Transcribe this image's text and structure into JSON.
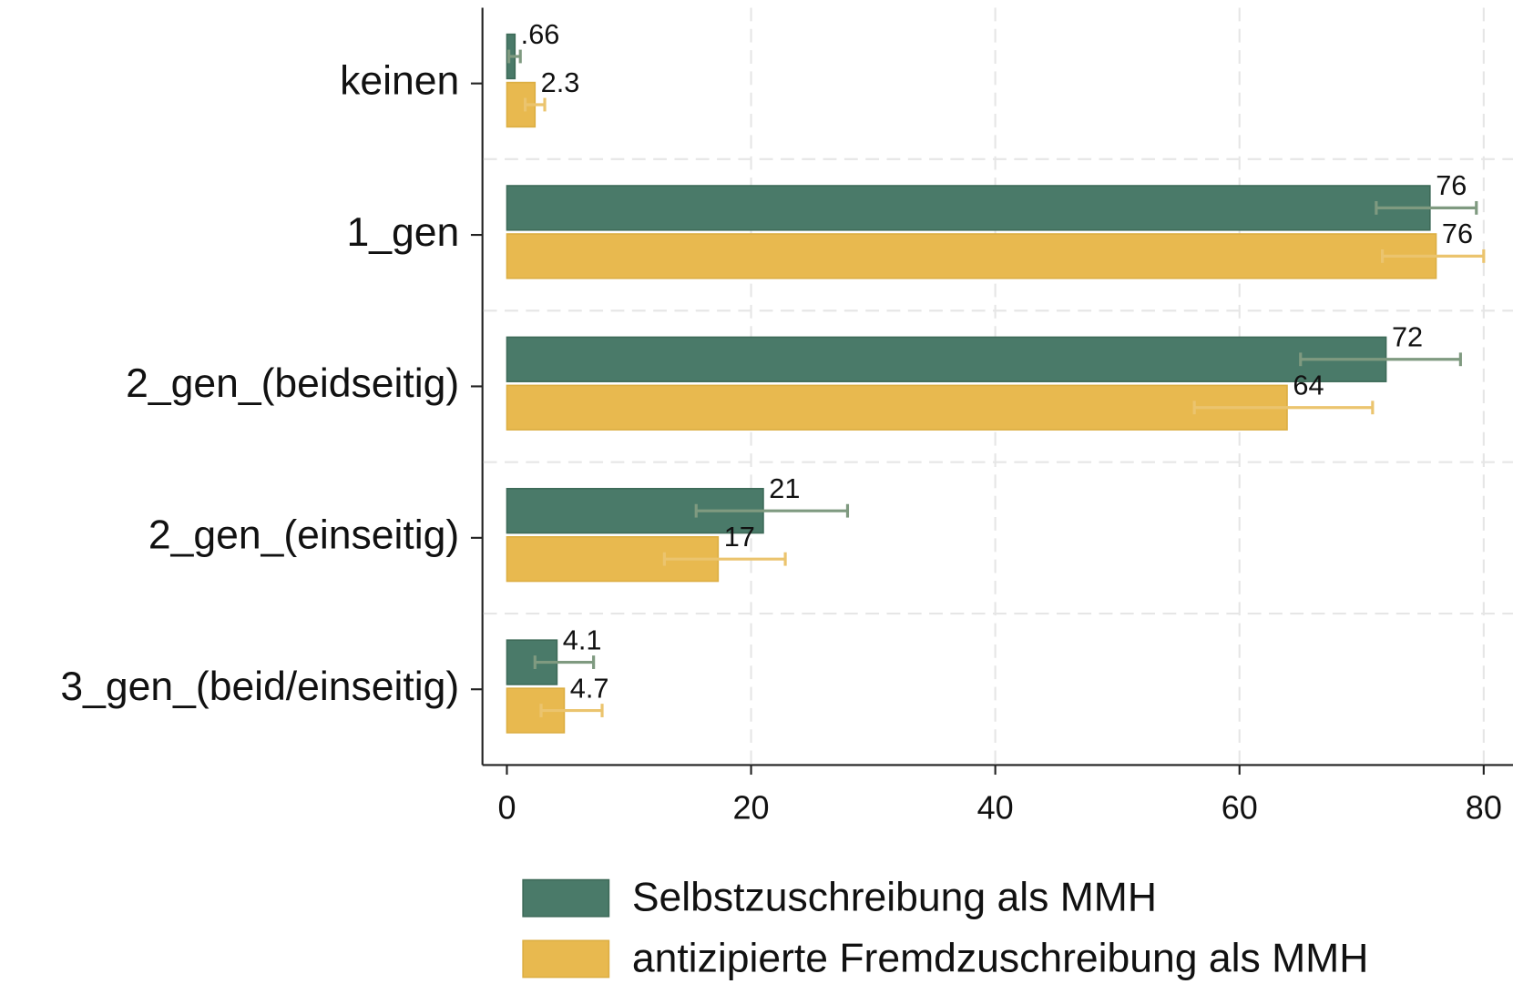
{
  "chart_data": {
    "type": "hbar",
    "categories": [
      "keinen",
      "1_gen",
      "2_gen_(beidseitig)",
      "2_gen_(einseitig)",
      "3_gen_(beid/einseitig)"
    ],
    "series": [
      {
        "name": "Selbstzuschreibung als MMH",
        "color": "#4a7a69",
        "error_color": "#7f9a80",
        "values": [
          0.66,
          75.6,
          72,
          21,
          4.1
        ],
        "value_labels": [
          ".66",
          "76",
          "72",
          "21",
          "4.1"
        ],
        "ci_low": [
          0.16,
          71.2,
          65,
          15.5,
          2.3
        ],
        "ci_high": [
          1.1,
          79.4,
          78.1,
          27.9,
          7.1
        ]
      },
      {
        "name": "antizipierte Fremdzuschreibung als MMH",
        "color": "#e8b94f",
        "error_color": "#ebc46e",
        "values": [
          2.3,
          76.1,
          63.9,
          17.3,
          4.7
        ],
        "value_labels": [
          "2.3",
          "76",
          "64",
          "17",
          "4.7"
        ],
        "ci_low": [
          1.5,
          71.7,
          56.3,
          12.9,
          2.8
        ],
        "ci_high": [
          3.1,
          80,
          70.9,
          22.8,
          7.8
        ]
      }
    ],
    "xlim": [
      -2,
      82.4
    ],
    "xticks": [
      0,
      20,
      40,
      60,
      80
    ],
    "grid": true,
    "legend": "bottom"
  }
}
